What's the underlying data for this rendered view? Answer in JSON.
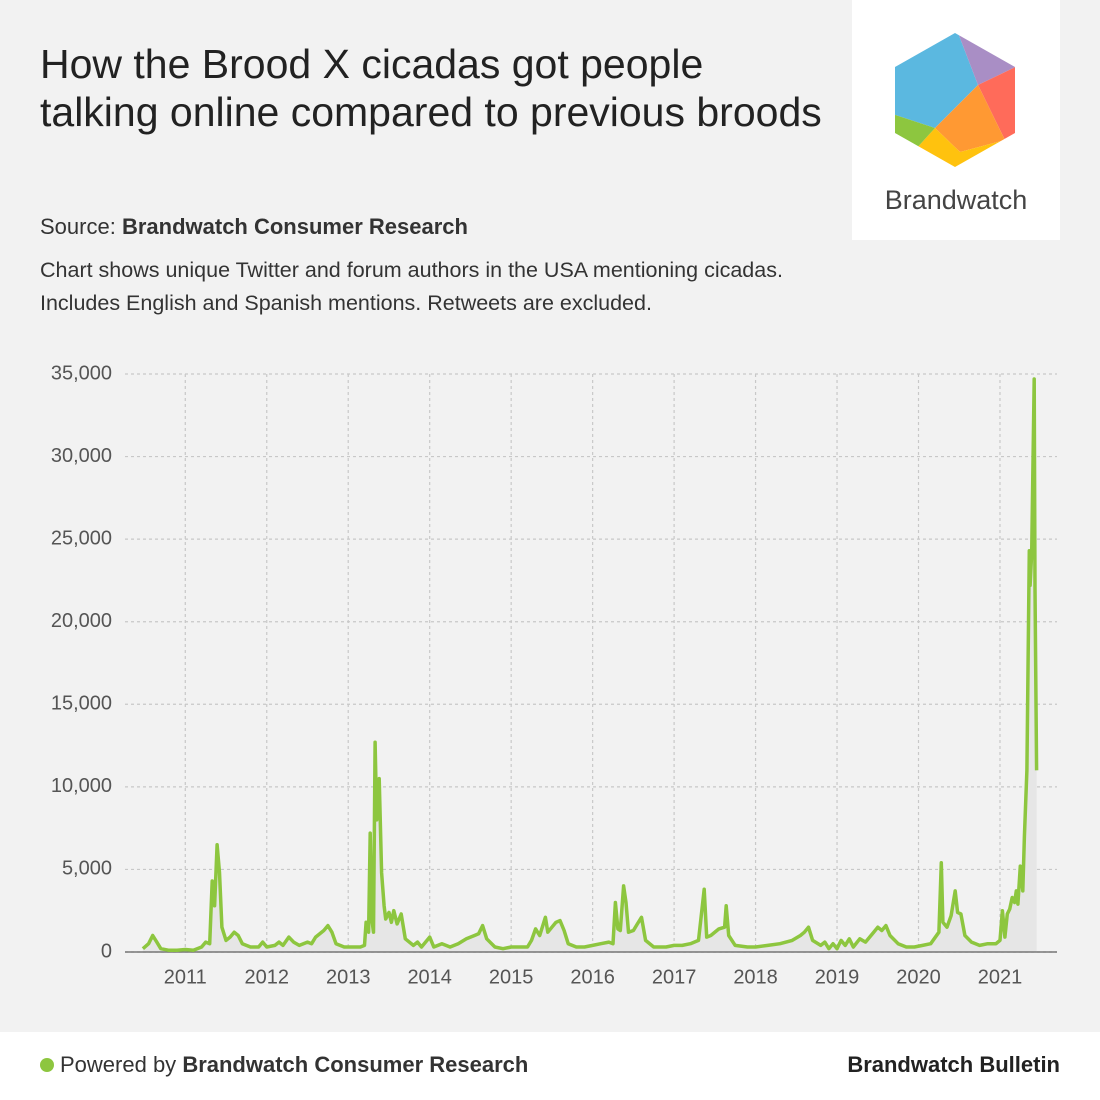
{
  "header": {
    "title": "How the Brood X cicadas got people talking online compared to previous broods",
    "source_label": "Source:",
    "source_name": "Brandwatch Consumer Research",
    "description": "Chart shows unique Twitter and forum authors in the USA mentioning cicadas. Includes English and Spanish mentions. Retweets are excluded.",
    "logo_text": "Brandwatch"
  },
  "footer": {
    "powered_label": "Powered by",
    "powered_name": "Brandwatch Consumer Research",
    "brand": "Brandwatch Bulletin"
  },
  "chart_data": {
    "type": "line",
    "color": "#8dc63f",
    "area_color": "#e6e6e6",
    "grid": true,
    "xlim": [
      2010.26,
      2021.7
    ],
    "xticks": [
      2011,
      2012,
      2013,
      2014,
      2015,
      2016,
      2017,
      2018,
      2019,
      2020,
      2021
    ],
    "ylim": [
      0,
      35000
    ],
    "yticks": [
      0,
      {
        "value": 5000,
        "label": "5,000"
      },
      {
        "value": 10000,
        "label": "10,000"
      },
      {
        "value": 15000,
        "label": "15,000"
      },
      {
        "value": 20000,
        "label": "20,000"
      },
      {
        "value": 25000,
        "label": "25,000"
      },
      {
        "value": 30000,
        "label": "30,000"
      },
      {
        "value": 35000,
        "label": "35,000"
      }
    ],
    "x": [
      2010.48,
      2010.55,
      2010.6,
      2010.65,
      2010.7,
      2010.8,
      2010.9,
      2011.0,
      2011.1,
      2011.2,
      2011.25,
      2011.3,
      2011.33,
      2011.36,
      2011.39,
      2011.42,
      2011.45,
      2011.5,
      2011.55,
      2011.6,
      2011.65,
      2011.7,
      2011.8,
      2011.9,
      2011.95,
      2012.0,
      2012.1,
      2012.15,
      2012.2,
      2012.27,
      2012.33,
      2012.4,
      2012.5,
      2012.55,
      2012.6,
      2012.7,
      2012.75,
      2012.8,
      2012.85,
      2012.95,
      2013.05,
      2013.15,
      2013.2,
      2013.22,
      2013.25,
      2013.27,
      2013.29,
      2013.31,
      2013.33,
      2013.35,
      2013.38,
      2013.41,
      2013.44,
      2013.46,
      2013.5,
      2013.53,
      2013.56,
      2013.6,
      2013.65,
      2013.7,
      2013.8,
      2013.85,
      2013.9,
      2014.0,
      2014.05,
      2014.15,
      2014.25,
      2014.35,
      2014.45,
      2014.55,
      2014.6,
      2014.65,
      2014.7,
      2014.8,
      2014.9,
      2015.0,
      2015.1,
      2015.2,
      2015.25,
      2015.3,
      2015.35,
      2015.42,
      2015.45,
      2015.5,
      2015.55,
      2015.6,
      2015.65,
      2015.7,
      2015.8,
      2015.9,
      2016.0,
      2016.1,
      2016.2,
      2016.25,
      2016.28,
      2016.31,
      2016.34,
      2016.38,
      2016.41,
      2016.44,
      2016.5,
      2016.55,
      2016.6,
      2016.65,
      2016.75,
      2016.9,
      2017.0,
      2017.1,
      2017.2,
      2017.3,
      2017.37,
      2017.4,
      2017.45,
      2017.55,
      2017.62,
      2017.64,
      2017.67,
      2017.75,
      2017.9,
      2018.0,
      2018.15,
      2018.3,
      2018.45,
      2018.55,
      2018.6,
      2018.65,
      2018.7,
      2018.8,
      2018.85,
      2018.9,
      2018.95,
      2019.0,
      2019.05,
      2019.1,
      2019.15,
      2019.2,
      2019.28,
      2019.35,
      2019.45,
      2019.5,
      2019.55,
      2019.6,
      2019.65,
      2019.75,
      2019.85,
      2019.95,
      2020.05,
      2020.15,
      2020.25,
      2020.28,
      2020.3,
      2020.35,
      2020.4,
      2020.45,
      2020.48,
      2020.52,
      2020.57,
      2020.65,
      2020.75,
      2020.85,
      2020.95,
      2021.0,
      2021.03,
      2021.06,
      2021.09,
      2021.12,
      2021.15,
      2021.18,
      2021.2,
      2021.22,
      2021.25,
      2021.28,
      2021.3,
      2021.33,
      2021.36,
      2021.37,
      2021.39,
      2021.42,
      2021.43,
      2021.45
    ],
    "values": [
      200,
      500,
      1000,
      600,
      200,
      100,
      100,
      150,
      100,
      300,
      600,
      500,
      4300,
      2800,
      6500,
      4800,
      1500,
      700,
      900,
      1200,
      1000,
      500,
      300,
      300,
      600,
      300,
      400,
      600,
      400,
      900,
      600,
      400,
      600,
      500,
      900,
      1300,
      1600,
      1200,
      500,
      300,
      300,
      300,
      400,
      1800,
      1200,
      7200,
      2000,
      1200,
      12700,
      8000,
      10500,
      4800,
      2800,
      2000,
      2400,
      1800,
      2500,
      1700,
      2300,
      800,
      400,
      600,
      300,
      900,
      300,
      500,
      300,
      500,
      800,
      1000,
      1100,
      1600,
      800,
      300,
      200,
      300,
      300,
      300,
      700,
      1400,
      1000,
      2100,
      1200,
      1500,
      1800,
      1900,
      1300,
      500,
      300,
      300,
      400,
      500,
      600,
      500,
      3000,
      1400,
      1300,
      4000,
      3000,
      1200,
      1300,
      1700,
      2100,
      700,
      300,
      300,
      400,
      400,
      500,
      700,
      3800,
      900,
      1000,
      1400,
      1500,
      2800,
      1000,
      400,
      300,
      300,
      400,
      500,
      700,
      1000,
      1200,
      1500,
      700,
      400,
      600,
      200,
      500,
      200,
      700,
      400,
      800,
      300,
      800,
      600,
      1200,
      1500,
      1300,
      1600,
      1000,
      500,
      300,
      300,
      400,
      500,
      1200,
      5400,
      1800,
      1500,
      2200,
      3700,
      2400,
      2300,
      1000,
      600,
      400,
      500,
      500,
      700,
      2500,
      900,
      2300,
      2600,
      3300,
      3000,
      3700,
      2900,
      5200,
      3700,
      7000,
      11000,
      24300,
      22200,
      24200,
      34700,
      22000,
      11000
    ]
  }
}
